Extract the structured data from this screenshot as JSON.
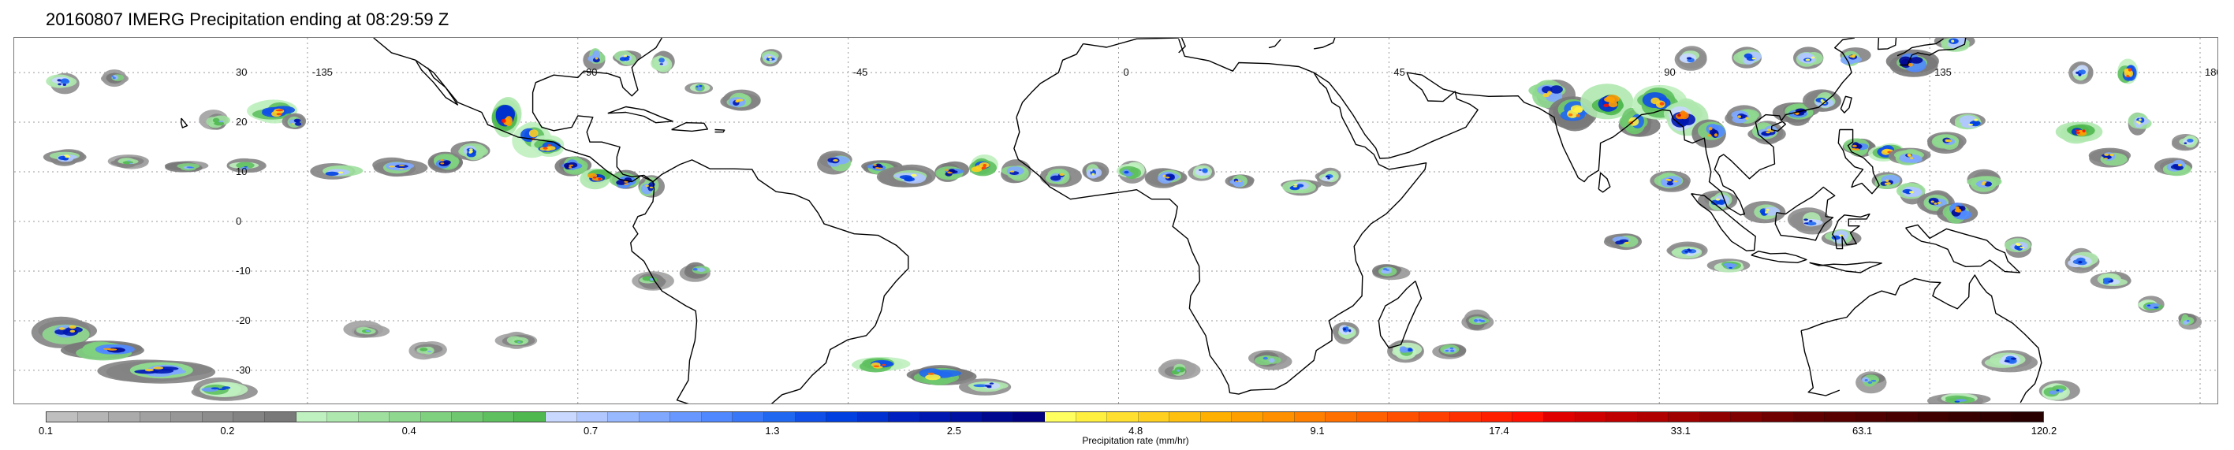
{
  "title": "20160807 IMERG Precipitation ending at 08:29:59 Z",
  "map": {
    "projection": "equirectangular",
    "lon_range": [
      -180,
      180
    ],
    "lat_range": [
      -37,
      37
    ],
    "lon_labels": [
      "-135",
      "-90",
      "-45",
      "0",
      "45",
      "90",
      "135",
      "180"
    ],
    "lat_labels": [
      "30",
      "20",
      "10",
      "0",
      "-10",
      "-20",
      "-30"
    ],
    "gridlines": "dotted",
    "coastline_color": "#000000"
  },
  "colorbar": {
    "title": "Precipitation rate (mm/hr)",
    "tick_labels": [
      "0.1",
      "0.2",
      "0.4",
      "0.7",
      "1.3",
      "2.5",
      "4.8",
      "9.1",
      "17.4",
      "33.1",
      "63.1",
      "120.2"
    ],
    "colors": [
      "#bfbfbf",
      "#b5b5b5",
      "#ababab",
      "#a1a1a1",
      "#979797",
      "#8d8d8d",
      "#838383",
      "#797979",
      "#bff0bf",
      "#afe8af",
      "#9fe09f",
      "#8fd88f",
      "#7fd07f",
      "#6fc86f",
      "#5fc05f",
      "#4fb84f",
      "#c8d8ff",
      "#b0c8ff",
      "#98b8ff",
      "#80a8ff",
      "#6898ff",
      "#5088ff",
      "#3878f8",
      "#2068f0",
      "#1050e8",
      "#0040e0",
      "#0030d0",
      "#0020c0",
      "#0018b0",
      "#0010a0",
      "#000890",
      "#000080",
      "#ffff60",
      "#fff040",
      "#ffe030",
      "#ffd020",
      "#ffc010",
      "#ffb000",
      "#ffa000",
      "#ff9000",
      "#ff8000",
      "#ff7000",
      "#ff6000",
      "#ff5000",
      "#ff4000",
      "#ff3000",
      "#ff2000",
      "#ff1000",
      "#e00000",
      "#d00000",
      "#c00000",
      "#b00000",
      "#a00000",
      "#900000",
      "#800000",
      "#700000",
      "#600000",
      "#580000",
      "#500000",
      "#480000",
      "#400000",
      "#380000",
      "#300000",
      "#280000"
    ]
  }
}
